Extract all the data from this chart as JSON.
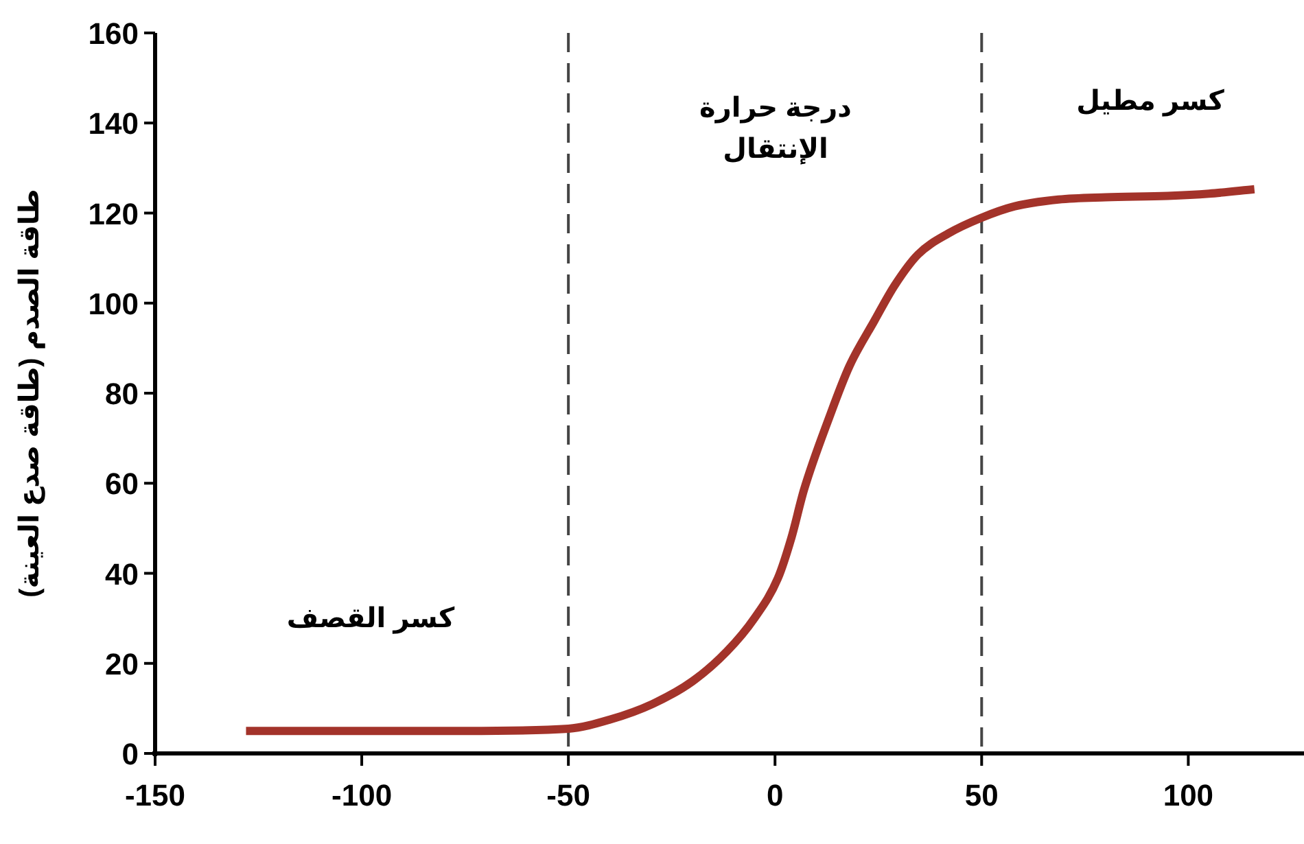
{
  "chart_data": {
    "type": "line",
    "ylabel": "طاقة الصدم (طاقة صدع العينة)",
    "xlim": [
      -150,
      128
    ],
    "ylim": [
      0,
      160
    ],
    "xticks": [
      -150,
      -100,
      -50,
      0,
      50,
      100
    ],
    "yticks": [
      0,
      20,
      40,
      60,
      80,
      100,
      120,
      140,
      160
    ],
    "series": [
      {
        "color": "#a3332a",
        "x": [
          -128,
          -100,
          -75,
          -50,
          -40,
          -29.6,
          -20,
          -11.7,
          -5,
          0.7,
          4,
          7,
          13.2,
          18,
          24,
          29,
          34.6,
          42,
          49.8,
          58,
          68.6,
          80,
          95,
          105,
          116
        ],
        "values": [
          5,
          5,
          5,
          5.5,
          7.5,
          11,
          16,
          22.6,
          30,
          38.9,
          48,
          58.5,
          74.8,
          86,
          96,
          104,
          110.8,
          115.5,
          118.9,
          121.5,
          123,
          123.5,
          123.8,
          124.3,
          125.3
        ]
      }
    ],
    "ref_lines": [
      {
        "axis": "x",
        "value": -50,
        "color": "#444444",
        "line_style": "dashed"
      },
      {
        "axis": "x",
        "value": 50,
        "color": "#444444",
        "line_style": "dashed"
      }
    ],
    "annotations": [
      "كسر القصف",
      "درجة حرارة الإنتقال",
      "كسر مطيل"
    ]
  }
}
